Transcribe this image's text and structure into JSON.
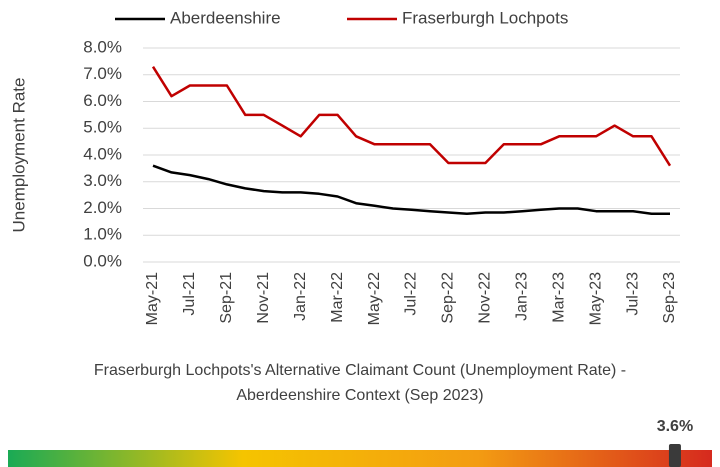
{
  "chart_data": [
    {
      "type": "line",
      "ylabel": "Unemployment Rate",
      "title_lines": [
        "Fraserburgh Lochpots's Alternative Claimant Count (Unemployment Rate) -",
        "Aberdeenshire Context (Sep 2023)"
      ],
      "categories": [
        "May-21",
        null,
        "Jul-21",
        null,
        "Sep-21",
        null,
        "Nov-21",
        null,
        "Jan-22",
        null,
        "Mar-22",
        null,
        "May-22",
        null,
        "Jul-22",
        null,
        "Sep-22",
        null,
        "Nov-22",
        null,
        "Jan-23",
        null,
        "Mar-23",
        null,
        "May-23",
        null,
        "Jul-23",
        null,
        "Sep-23"
      ],
      "series": [
        {
          "name": "Aberdeenshire",
          "color": "#000000",
          "values": [
            3.6,
            3.35,
            3.25,
            3.1,
            2.9,
            2.75,
            2.65,
            2.6,
            2.6,
            2.55,
            2.45,
            2.2,
            2.1,
            2.0,
            1.95,
            1.9,
            1.85,
            1.8,
            1.85,
            1.85,
            1.9,
            1.95,
            2.0,
            2.0,
            1.9,
            1.9,
            1.9,
            1.8,
            1.8
          ]
        },
        {
          "name": "Fraserburgh Lochpots",
          "color": "#c00000",
          "values": [
            7.3,
            6.2,
            6.6,
            6.6,
            6.6,
            5.5,
            5.5,
            5.1,
            4.7,
            5.5,
            5.5,
            4.7,
            4.4,
            4.4,
            4.4,
            4.4,
            3.7,
            3.7,
            3.7,
            4.4,
            4.4,
            4.4,
            4.7,
            4.7,
            4.7,
            5.1,
            4.7,
            4.7,
            3.6
          ]
        }
      ],
      "ylim": [
        0,
        8
      ],
      "yticks": [
        {
          "value": 0,
          "label": "0.0%"
        },
        {
          "value": 1,
          "label": "1.0%"
        },
        {
          "value": 2,
          "label": "2.0%"
        },
        {
          "value": 3,
          "label": "3.0%"
        },
        {
          "value": 4,
          "label": "4.0%"
        },
        {
          "value": 5,
          "label": "5.0%"
        },
        {
          "value": 6,
          "label": "6.0%"
        },
        {
          "value": 7,
          "label": "7.0%"
        },
        {
          "value": 8,
          "label": "8.0%"
        }
      ],
      "grid": true,
      "legend": "top"
    },
    {
      "type": "gauge",
      "value": 3.6,
      "value_label": "3.6%",
      "xlim": [
        0,
        3.8
      ],
      "colors": [
        "#1aaa55",
        "#f5c400",
        "#f39c12",
        "#d62a1e"
      ]
    }
  ]
}
